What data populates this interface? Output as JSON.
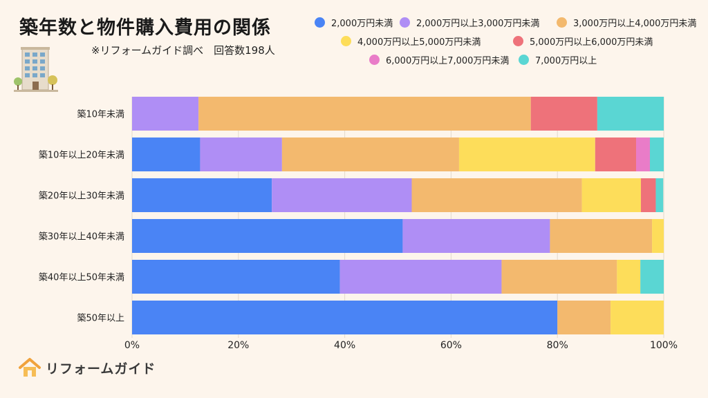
{
  "header": {
    "title": "築年数と物件購入費用の関係",
    "subtitle": "※リフォームガイド調べ　回答数198人"
  },
  "logo": {
    "text": "リフォームガイド",
    "icon": "house-icon"
  },
  "chart_data": {
    "type": "bar",
    "orientation": "horizontal",
    "stacked": true,
    "title": "築年数と物件購入費用の関係",
    "categories": [
      "築10年未満",
      "築10年以上20年未満",
      "築20年以上30年未満",
      "築30年以上40年未満",
      "築40年以上50年未満",
      "築50年以上"
    ],
    "xlim": [
      0,
      100
    ],
    "x_ticks": [
      "0%",
      "20%",
      "40%",
      "60%",
      "80%",
      "100%"
    ],
    "grid": true,
    "legend_position": "top-right",
    "series": [
      {
        "name": "2,000万円未満",
        "color": "#4a84f5",
        "values": [
          0,
          12.8,
          26.3,
          50.9,
          39.1,
          80.0
        ]
      },
      {
        "name": "2,000万円以上3,000万円未満",
        "color": "#af8ef5",
        "values": [
          12.5,
          15.4,
          26.3,
          27.7,
          30.4,
          0
        ]
      },
      {
        "name": "3,000万円以上4,000万円未満",
        "color": "#f3b96e",
        "values": [
          62.5,
          33.3,
          32.0,
          19.2,
          21.7,
          10.0
        ]
      },
      {
        "name": "4,000万円以上5,000万円未満",
        "color": "#fddd5a",
        "values": [
          0,
          25.6,
          11.1,
          2.2,
          4.4,
          10.0
        ]
      },
      {
        "name": "5,000万円以上6,000万円未満",
        "color": "#ee727a",
        "values": [
          12.5,
          7.7,
          2.8,
          0,
          0,
          0
        ]
      },
      {
        "name": "6,000万円以上7,000万円未満",
        "color": "#e97cc8",
        "values": [
          0,
          2.6,
          0,
          0,
          0,
          0
        ]
      },
      {
        "name": "7,000万円以上",
        "color": "#5ad6d3",
        "values": [
          12.5,
          2.6,
          1.4,
          0,
          4.4,
          0
        ]
      }
    ]
  }
}
